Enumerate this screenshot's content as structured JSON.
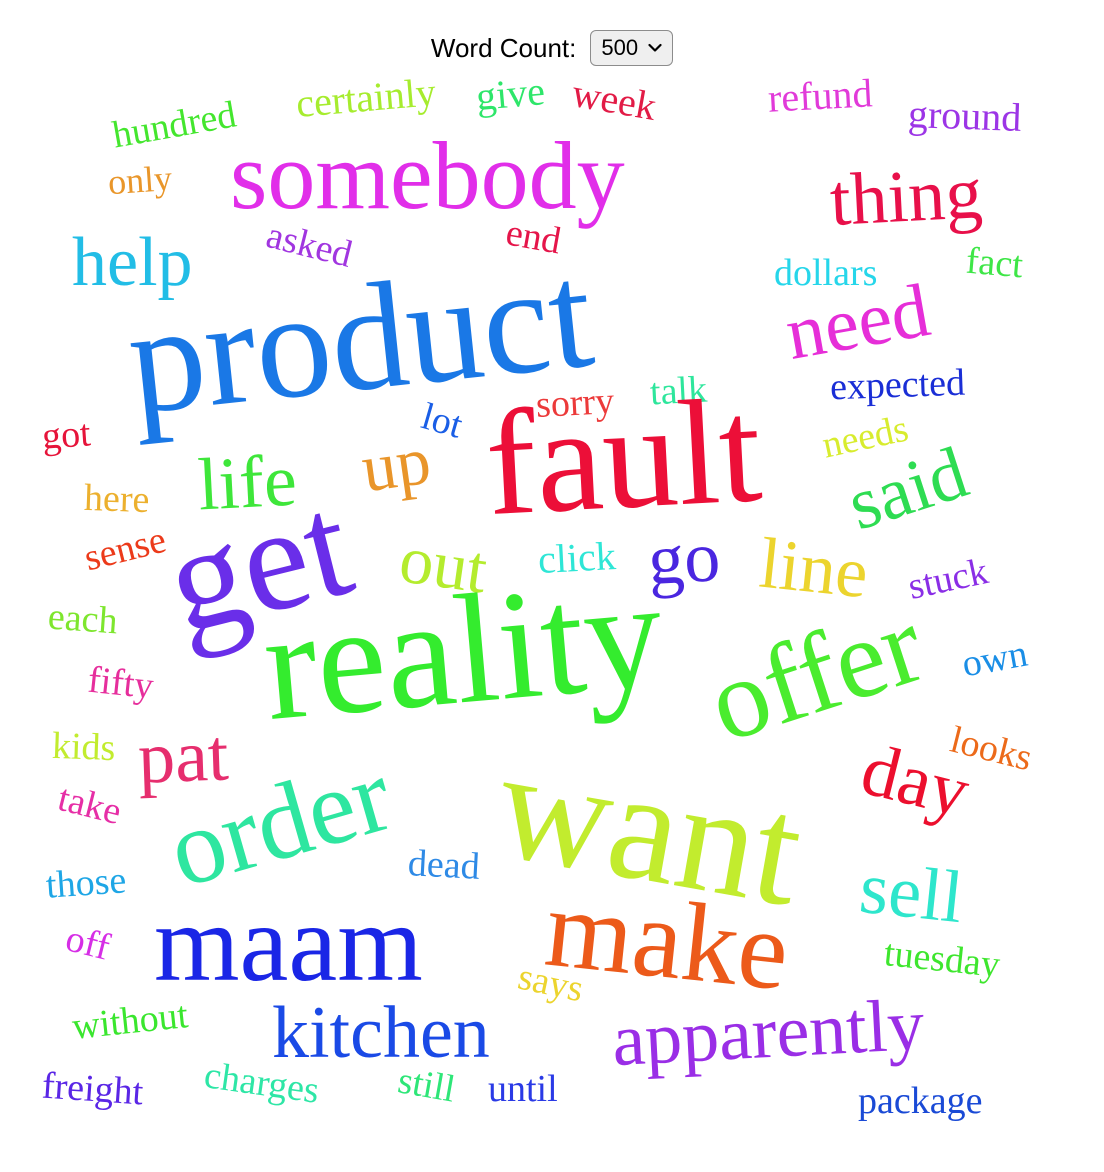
{
  "control": {
    "label": "Word Count:",
    "selected": "500",
    "icon": "chevron-down-icon"
  },
  "words": [
    {
      "text": "hundred",
      "color": "#44e62e"
    },
    {
      "text": "certainly",
      "color": "#a6ec2e"
    },
    {
      "text": "give",
      "color": "#2ee66a"
    },
    {
      "text": "week",
      "color": "#e21b46"
    },
    {
      "text": "refund",
      "color": "#e13ad9"
    },
    {
      "text": "ground",
      "color": "#9c35e6"
    },
    {
      "text": "only",
      "color": "#e9962a"
    },
    {
      "text": "somebody",
      "color": "#e12ee9"
    },
    {
      "text": "thing",
      "color": "#e8104a"
    },
    {
      "text": "help",
      "color": "#22bde6"
    },
    {
      "text": "asked",
      "color": "#a136e0"
    },
    {
      "text": "end",
      "color": "#e5154a"
    },
    {
      "text": "dollars",
      "color": "#26d6ea"
    },
    {
      "text": "fact",
      "color": "#3ee647"
    },
    {
      "text": "product",
      "color": "#1a78e6"
    },
    {
      "text": "need",
      "color": "#e62ed8"
    },
    {
      "text": "expected",
      "color": "#1a2ed6"
    },
    {
      "text": "sorry",
      "color": "#ec3a3a"
    },
    {
      "text": "talk",
      "color": "#2ee69c"
    },
    {
      "text": "lot",
      "color": "#1a5ee6"
    },
    {
      "text": "got",
      "color": "#e6143a"
    },
    {
      "text": "fault",
      "color": "#ec0f38"
    },
    {
      "text": "needs",
      "color": "#d8ec2e"
    },
    {
      "text": "life",
      "color": "#3ee63a"
    },
    {
      "text": "up",
      "color": "#e9952a"
    },
    {
      "text": "here",
      "color": "#ecb02e"
    },
    {
      "text": "said",
      "color": "#2edc52"
    },
    {
      "text": "sense",
      "color": "#ec3a1a"
    },
    {
      "text": "out",
      "color": "#b4ec2e"
    },
    {
      "text": "click",
      "color": "#2ee6d6"
    },
    {
      "text": "go",
      "color": "#4a26e0"
    },
    {
      "text": "line",
      "color": "#ecd42e"
    },
    {
      "text": "stuck",
      "color": "#8a2ee6"
    },
    {
      "text": "get",
      "color": "#6a2ee9"
    },
    {
      "text": "each",
      "color": "#7ee62e"
    },
    {
      "text": "reality",
      "color": "#34ec2e"
    },
    {
      "text": "offer",
      "color": "#4aec2e"
    },
    {
      "text": "own",
      "color": "#1a8ee6"
    },
    {
      "text": "fifty",
      "color": "#e62e9c"
    },
    {
      "text": "looks",
      "color": "#ec6a1a"
    },
    {
      "text": "kids",
      "color": "#c2ec2e"
    },
    {
      "text": "pat",
      "color": "#e62e6e"
    },
    {
      "text": "day",
      "color": "#ec0f2e"
    },
    {
      "text": "take",
      "color": "#e62ea6"
    },
    {
      "text": "order",
      "color": "#2ee6a0"
    },
    {
      "text": "want",
      "color": "#c2ec2e"
    },
    {
      "text": "dead",
      "color": "#2e8ae6"
    },
    {
      "text": "those",
      "color": "#1ea6e6"
    },
    {
      "text": "sell",
      "color": "#2ee6cc"
    },
    {
      "text": "maam",
      "color": "#1a26e6"
    },
    {
      "text": "make",
      "color": "#ec5a1a"
    },
    {
      "text": "off",
      "color": "#d62ee6"
    },
    {
      "text": "tuesday",
      "color": "#3ee62e"
    },
    {
      "text": "says",
      "color": "#ecd42e"
    },
    {
      "text": "without",
      "color": "#3ae62e"
    },
    {
      "text": "kitchen",
      "color": "#1a4ae6"
    },
    {
      "text": "apparently",
      "color": "#9a2ee6"
    },
    {
      "text": "freight",
      "color": "#5a26e6"
    },
    {
      "text": "charges",
      "color": "#2ee6a6"
    },
    {
      "text": "still",
      "color": "#2ee678"
    },
    {
      "text": "until",
      "color": "#2a3ae6"
    },
    {
      "text": "package",
      "color": "#1a4ad6"
    }
  ]
}
